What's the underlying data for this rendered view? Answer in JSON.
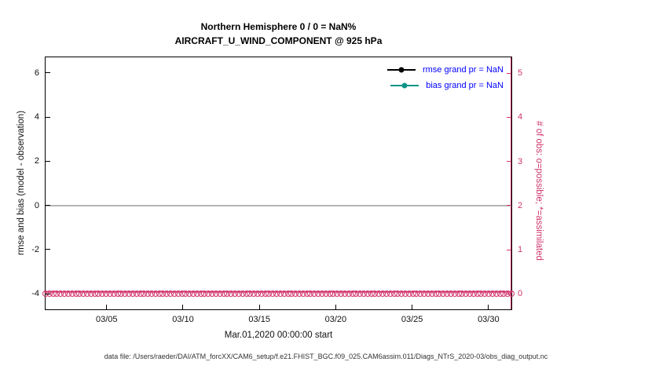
{
  "title": {
    "line1": "Northern Hemisphere 0 / 0 = NaN%",
    "line2": "AIRCRAFT_U_WIND_COMPONENT @ 925 hPa"
  },
  "axis_labels": {
    "left": "rmse and bias (model - observation)",
    "right": "# of obs: o=possible; *=assimilated",
    "x": "Mar.01,2020 00:00:00 start"
  },
  "legend": {
    "text_color": "#0000ff",
    "items": [
      {
        "label": "rmse grand pr = NaN",
        "swatch_color": "#000000"
      },
      {
        "label": "bias grand pr = NaN",
        "swatch_color": "#0d9488"
      }
    ]
  },
  "caption": "data file: /Users/raeder/DAI/ATM_forcXX/CAM6_setup/f.e21.FHIST_BGC.f09_025.CAM6assim.011/Diags_NTrS_2020-03/obs_diag_output.nc",
  "colors": {
    "right_axis": "#d0336b",
    "zero_line": "#b8b4b4",
    "legend_text": "#0000ff"
  },
  "chart_data": {
    "type": "line",
    "title": "Northern Hemisphere 0 / 0 = NaN%",
    "subtitle": "AIRCRAFT_U_WIND_COMPONENT @ 925 hPa",
    "x_start": "2020-03-01 00:00:00",
    "xlim_days": [
      1,
      31.5
    ],
    "x_ticks": [
      {
        "day": 5,
        "label": "03/05"
      },
      {
        "day": 10,
        "label": "03/10"
      },
      {
        "day": 15,
        "label": "03/15"
      },
      {
        "day": 20,
        "label": "03/20"
      },
      {
        "day": 25,
        "label": "03/25"
      },
      {
        "day": 30,
        "label": "03/30"
      }
    ],
    "left_axis": {
      "label": "rmse and bias (model - observation)",
      "lim": [
        -4.7,
        6.7
      ],
      "ticks": [
        -4,
        -2,
        0,
        2,
        4,
        6
      ]
    },
    "right_axis": {
      "label": "# of obs: o=possible; *=assimilated",
      "lim": [
        -0.35,
        5.36
      ],
      "ticks": [
        0,
        1,
        2,
        3,
        4,
        5
      ]
    },
    "series": [
      {
        "name": "rmse",
        "grand_mean": "NaN",
        "values": "all NaN (no line drawn)"
      },
      {
        "name": "bias",
        "grand_mean": "NaN",
        "values": "all NaN (no line drawn)"
      },
      {
        "name": "obs possible (o)",
        "axis": "right",
        "constant_value": 0,
        "marker_count": 124
      },
      {
        "name": "obs assimilated (*)",
        "axis": "right",
        "constant_value": 0,
        "marker_count": 124
      }
    ],
    "zero_reference_line": {
      "y": 0,
      "axis": "left"
    },
    "grid": false,
    "legend_position": "upper-right-inside"
  }
}
